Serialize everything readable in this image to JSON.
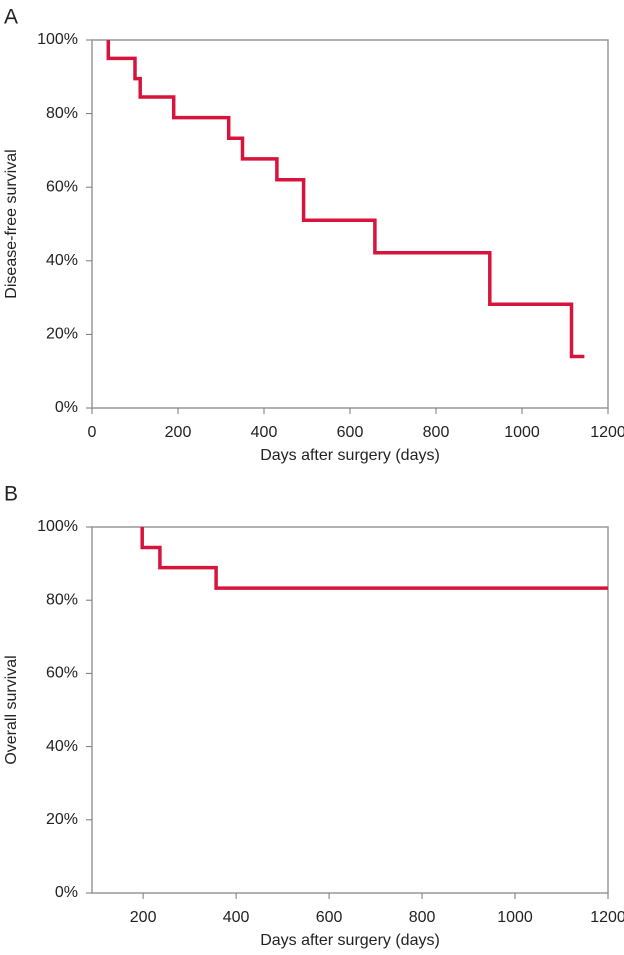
{
  "chart_data": [
    {
      "type": "line",
      "panel": "A",
      "ylabel": "Disease-free survival",
      "xlabel": "Days after surgery (days)",
      "x": [
        38,
        38,
        100,
        100,
        112,
        112,
        190,
        190,
        318,
        318,
        350,
        350,
        430,
        430,
        492,
        492,
        658,
        658,
        925,
        925,
        1115,
        1115,
        1145
      ],
      "values": [
        100,
        95,
        95,
        89.5,
        89.5,
        84.5,
        84.5,
        78.9,
        78.9,
        73.3,
        73.3,
        67.7,
        67.7,
        62,
        62,
        51,
        51,
        42.2,
        42.2,
        28.2,
        28.2,
        14,
        14
      ],
      "color": "#d7143c",
      "xlim": [
        0,
        1200
      ],
      "xticks": [
        0,
        200,
        400,
        600,
        800,
        1000,
        1200
      ],
      "ylim": [
        0,
        100
      ],
      "yticks": [
        {
          "value": 0,
          "label": "0%"
        },
        {
          "value": 20,
          "label": "20%"
        },
        {
          "value": 40,
          "label": "40%"
        },
        {
          "value": 60,
          "label": "60%"
        },
        {
          "value": 80,
          "label": "80%"
        },
        {
          "value": 100,
          "label": "100%"
        }
      ]
    },
    {
      "type": "line",
      "panel": "B",
      "ylabel": "Overall survival",
      "xlabel": "Days after surgery (days)",
      "x": [
        198,
        198,
        236,
        236,
        357,
        357,
        1200
      ],
      "values": [
        100,
        94.4,
        94.4,
        88.9,
        88.9,
        83.3,
        83.3
      ],
      "color": "#d7143c",
      "xlim": [
        90,
        1200
      ],
      "xticks": [
        200,
        400,
        600,
        800,
        1000,
        1200
      ],
      "ylim": [
        0,
        100
      ],
      "yticks": [
        {
          "value": 0,
          "label": "0%"
        },
        {
          "value": 20,
          "label": "20%"
        },
        {
          "value": 40,
          "label": "40%"
        },
        {
          "value": 60,
          "label": "60%"
        },
        {
          "value": 80,
          "label": "80%"
        },
        {
          "value": 100,
          "label": "100%"
        }
      ]
    }
  ]
}
